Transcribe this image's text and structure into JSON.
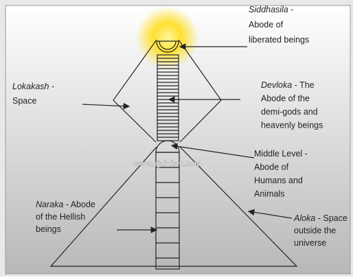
{
  "labels": [
    {
      "name": "Siddhasila",
      "first": " -",
      "lines": [
        "Abode of",
        "liberated beings"
      ]
    },
    {
      "name": "Lokakash",
      "first": " -",
      "lines": [
        "Space"
      ]
    },
    {
      "name": "Devloka",
      "first": " - The",
      "lines": [
        "Abode of the",
        "demi-gods and",
        "heavenly beings"
      ]
    },
    {
      "name": "",
      "first": "Middle Level -",
      "lines": [
        "Abode of",
        "Humans and",
        "Animals"
      ]
    },
    {
      "name": "Naraka",
      "first": " - Abode",
      "lines": [
        "of the Hellish",
        "beings"
      ]
    },
    {
      "name": "Aloka",
      "first": " - Space",
      "lines": [
        "outside the",
        "universe"
      ]
    }
  ],
  "watermark": "www.ejainism.com"
}
